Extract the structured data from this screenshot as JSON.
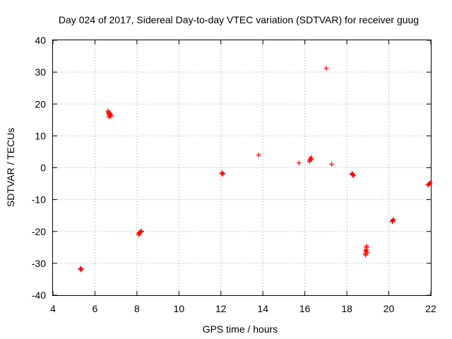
{
  "chart_data": {
    "type": "scatter",
    "title": "Day 024 of 2017, Sidereal Day-to-day VTEC variation (SDTVAR) for receiver guug",
    "xlabel": "GPS time / hours",
    "ylabel": "SDTVAR / TECUs",
    "xlim": [
      4,
      22
    ],
    "ylim": [
      -40,
      40
    ],
    "xticks": [
      "4",
      "6",
      "8",
      "10",
      "12",
      "14",
      "16",
      "18",
      "20",
      "22"
    ],
    "yticks": [
      "40",
      "30",
      "20",
      "10",
      "0",
      "-10",
      "-20",
      "-30",
      "-40"
    ],
    "grid": true,
    "marker": "+",
    "color": "#ff0000",
    "series": [
      {
        "name": "SDTVAR",
        "points": [
          [
            5.3,
            -31.6
          ],
          [
            5.33,
            -32.0
          ],
          [
            5.36,
            -31.8
          ],
          [
            6.62,
            17.8
          ],
          [
            6.64,
            17.4
          ],
          [
            6.66,
            17.1
          ],
          [
            6.68,
            16.9
          ],
          [
            6.7,
            16.6
          ],
          [
            6.72,
            16.3
          ],
          [
            6.74,
            16.7
          ],
          [
            6.66,
            16.0
          ],
          [
            6.76,
            16.2
          ],
          [
            6.7,
            17.2
          ],
          [
            8.08,
            -21.0
          ],
          [
            8.12,
            -20.6
          ],
          [
            8.16,
            -20.2
          ],
          [
            8.2,
            -19.9
          ],
          [
            8.1,
            -20.4
          ],
          [
            8.22,
            -20.1
          ],
          [
            12.04,
            -1.6
          ],
          [
            12.07,
            -2.0
          ],
          [
            12.1,
            -1.8
          ],
          [
            13.8,
            4.0
          ],
          [
            15.72,
            1.5
          ],
          [
            16.22,
            2.0
          ],
          [
            16.26,
            2.8
          ],
          [
            16.3,
            3.2
          ],
          [
            16.24,
            2.4
          ],
          [
            16.32,
            2.6
          ],
          [
            17.02,
            31.2
          ],
          [
            17.28,
            1.1
          ],
          [
            18.24,
            -1.8
          ],
          [
            18.28,
            -2.2
          ],
          [
            18.32,
            -2.5
          ],
          [
            18.26,
            -2.0
          ],
          [
            18.88,
            -27.0
          ],
          [
            18.9,
            -26.2
          ],
          [
            18.92,
            -25.6
          ],
          [
            18.94,
            -25.0
          ],
          [
            18.96,
            -26.6
          ],
          [
            18.9,
            -27.4
          ],
          [
            18.94,
            -24.6
          ],
          [
            18.92,
            -26.0
          ],
          [
            20.16,
            -16.9
          ],
          [
            20.2,
            -16.5
          ],
          [
            20.22,
            -16.2
          ],
          [
            20.18,
            -16.7
          ],
          [
            21.86,
            -5.4
          ],
          [
            21.9,
            -5.2
          ],
          [
            21.94,
            -5.0
          ],
          [
            21.97,
            -4.8
          ]
        ]
      }
    ]
  }
}
